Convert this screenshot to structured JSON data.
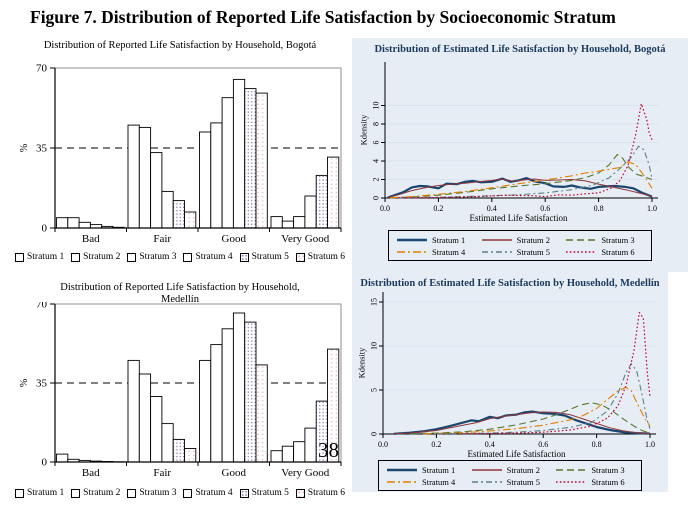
{
  "figure": {
    "title": "Figure 7. Distribution of Reported Life Satisfaction by Socioeconomic Stratum"
  },
  "page_number": "38",
  "colors": {
    "navy": "#1a476f",
    "maroon": "#90353b",
    "green": "#55752f",
    "orange": "#e37e00",
    "teal": "#5f8187",
    "red": "#c10534",
    "card_bg": "#e6edf4",
    "grid": "#d9e5ee",
    "pattern5_dot": "#8877b0",
    "pattern6_dot": "#e4a8b8"
  },
  "chart_data": [
    {
      "id": "bar_bogota",
      "type": "bar",
      "title": "Distribution of Reported Life Satisfaction by Household, Bogotá",
      "ylabel": "%",
      "yticks": [
        0,
        35,
        70
      ],
      "ylim": [
        0,
        70
      ],
      "ref_line": 35,
      "legend_position": "bottom",
      "categories": [
        "Bad",
        "Fair",
        "Good",
        "Very Good"
      ],
      "series": [
        {
          "name": "Stratum 1",
          "values": [
            4.5,
            45,
            42,
            5
          ]
        },
        {
          "name": "Stratum 2",
          "values": [
            4.5,
            44,
            46,
            3
          ]
        },
        {
          "name": "Stratum 3",
          "values": [
            2.5,
            33,
            57,
            5
          ]
        },
        {
          "name": "Stratum 4",
          "values": [
            1.5,
            16,
            65,
            14
          ]
        },
        {
          "name": "Stratum 5",
          "values": [
            0.7,
            12,
            61,
            23
          ]
        },
        {
          "name": "Stratum 6",
          "values": [
            0.3,
            7,
            59,
            31
          ]
        }
      ]
    },
    {
      "id": "density_bogota",
      "type": "line",
      "title": "Distribution of Estimated Life Satisfaction by Household, Bogotá",
      "xlabel": "Estimated Life Satisfaction",
      "ylabel": "Kdensity",
      "xlim": [
        0,
        1
      ],
      "ylim": [
        0,
        14.7
      ],
      "yticks": [
        0,
        2,
        4,
        6,
        8,
        10
      ],
      "xticks": [
        0,
        0.2,
        0.4,
        0.6,
        0.8,
        1.0
      ],
      "legend_position": "bottom-box",
      "series": [
        {
          "name": "Stratum 1",
          "points": [
            [
              0.01,
              0.05
            ],
            [
              0.04,
              0.35
            ],
            [
              0.07,
              0.65
            ],
            [
              0.1,
              1.15
            ],
            [
              0.13,
              1.3
            ],
            [
              0.16,
              1.25
            ],
            [
              0.2,
              1.05
            ],
            [
              0.23,
              1.55
            ],
            [
              0.27,
              1.5
            ],
            [
              0.3,
              1.75
            ],
            [
              0.33,
              1.85
            ],
            [
              0.36,
              1.7
            ],
            [
              0.4,
              1.75
            ],
            [
              0.44,
              2.1
            ],
            [
              0.47,
              1.75
            ],
            [
              0.5,
              1.9
            ],
            [
              0.53,
              2.15
            ],
            [
              0.56,
              1.8
            ],
            [
              0.6,
              1.6
            ],
            [
              0.63,
              1.25
            ],
            [
              0.67,
              1.2
            ],
            [
              0.7,
              1.35
            ],
            [
              0.73,
              1.15
            ],
            [
              0.77,
              1.0
            ],
            [
              0.8,
              1.2
            ],
            [
              0.83,
              1.25
            ],
            [
              0.86,
              1.3
            ],
            [
              0.9,
              1.2
            ],
            [
              0.93,
              1.05
            ],
            [
              0.96,
              0.6
            ],
            [
              1.0,
              0.15
            ]
          ]
        },
        {
          "name": "Stratum 2",
          "points": [
            [
              0.01,
              0.05
            ],
            [
              0.05,
              0.35
            ],
            [
              0.1,
              0.8
            ],
            [
              0.15,
              1.1
            ],
            [
              0.2,
              1.35
            ],
            [
              0.25,
              1.5
            ],
            [
              0.3,
              1.6
            ],
            [
              0.35,
              1.75
            ],
            [
              0.4,
              1.9
            ],
            [
              0.44,
              2.05
            ],
            [
              0.48,
              1.8
            ],
            [
              0.52,
              1.95
            ],
            [
              0.56,
              2.05
            ],
            [
              0.6,
              1.9
            ],
            [
              0.65,
              1.95
            ],
            [
              0.7,
              2.0
            ],
            [
              0.75,
              1.85
            ],
            [
              0.8,
              1.5
            ],
            [
              0.85,
              1.2
            ],
            [
              0.9,
              0.9
            ],
            [
              0.95,
              0.55
            ],
            [
              1.0,
              0.2
            ]
          ]
        },
        {
          "name": "Stratum 3",
          "points": [
            [
              0.02,
              0.02
            ],
            [
              0.1,
              0.1
            ],
            [
              0.2,
              0.3
            ],
            [
              0.3,
              0.6
            ],
            [
              0.4,
              1.0
            ],
            [
              0.5,
              1.3
            ],
            [
              0.6,
              1.55
            ],
            [
              0.7,
              1.9
            ],
            [
              0.75,
              2.2
            ],
            [
              0.8,
              2.7
            ],
            [
              0.84,
              3.6
            ],
            [
              0.87,
              4.7
            ],
            [
              0.89,
              4.3
            ],
            [
              0.91,
              3.4
            ],
            [
              0.94,
              2.6
            ],
            [
              0.97,
              2.3
            ],
            [
              1.0,
              2.0
            ]
          ]
        },
        {
          "name": "Stratum 4",
          "points": [
            [
              0.02,
              0.02
            ],
            [
              0.1,
              0.15
            ],
            [
              0.2,
              0.4
            ],
            [
              0.3,
              0.7
            ],
            [
              0.4,
              1.1
            ],
            [
              0.5,
              1.55
            ],
            [
              0.6,
              1.95
            ],
            [
              0.7,
              2.4
            ],
            [
              0.75,
              2.7
            ],
            [
              0.8,
              2.9
            ],
            [
              0.84,
              3.1
            ],
            [
              0.88,
              3.3
            ],
            [
              0.91,
              3.9
            ],
            [
              0.94,
              3.6
            ],
            [
              0.97,
              2.4
            ],
            [
              1.0,
              1.05
            ]
          ]
        },
        {
          "name": "Stratum 5",
          "points": [
            [
              0.05,
              0.02
            ],
            [
              0.2,
              0.08
            ],
            [
              0.35,
              0.2
            ],
            [
              0.5,
              0.35
            ],
            [
              0.6,
              0.55
            ],
            [
              0.7,
              0.9
            ],
            [
              0.78,
              1.4
            ],
            [
              0.84,
              2.2
            ],
            [
              0.88,
              3.2
            ],
            [
              0.92,
              4.3
            ],
            [
              0.95,
              5.6
            ],
            [
              0.97,
              5.2
            ],
            [
              0.99,
              3.5
            ],
            [
              1.0,
              2.1
            ]
          ]
        },
        {
          "name": "Stratum 6",
          "points": [
            [
              0.05,
              0.02
            ],
            [
              0.2,
              0.05
            ],
            [
              0.35,
              0.15
            ],
            [
              0.45,
              0.3
            ],
            [
              0.55,
              0.25
            ],
            [
              0.6,
              0.15
            ],
            [
              0.65,
              0.35
            ],
            [
              0.7,
              0.3
            ],
            [
              0.75,
              0.45
            ],
            [
              0.8,
              0.55
            ],
            [
              0.85,
              1.1
            ],
            [
              0.88,
              1.9
            ],
            [
              0.91,
              3.5
            ],
            [
              0.94,
              7.0
            ],
            [
              0.96,
              10.2
            ],
            [
              0.98,
              8.5
            ],
            [
              0.99,
              7.0
            ],
            [
              1.0,
              6.3
            ]
          ]
        }
      ]
    },
    {
      "id": "bar_medellin",
      "type": "bar",
      "title": "Distribution of Reported Life Satisfaction by Household, Medellín",
      "ylabel": "%",
      "yticks": [
        0,
        35,
        70
      ],
      "ylim": [
        0,
        70
      ],
      "ref_line": 35,
      "legend_position": "bottom",
      "categories": [
        "Bad",
        "Fair",
        "Good",
        "Very Good"
      ],
      "series": [
        {
          "name": "Stratum 1",
          "values": [
            3.5,
            45,
            45,
            5
          ]
        },
        {
          "name": "Stratum 2",
          "values": [
            1.2,
            39,
            52,
            7
          ]
        },
        {
          "name": "Stratum 3",
          "values": [
            0.7,
            29,
            59,
            9
          ]
        },
        {
          "name": "Stratum 4",
          "values": [
            0.4,
            17,
            66,
            15
          ]
        },
        {
          "name": "Stratum 5",
          "values": [
            0.2,
            10,
            62,
            27
          ]
        },
        {
          "name": "Stratum 6",
          "values": [
            0.1,
            6,
            43,
            50
          ]
        }
      ]
    },
    {
      "id": "density_medellin",
      "type": "line",
      "title": "Distribution of Estimated Life Satisfaction by Household, Medellín",
      "xlabel": "Estimated Life Satisfaction",
      "ylabel": "Kdensity",
      "xlim": [
        0,
        1
      ],
      "ylim": [
        0,
        16.3
      ],
      "yticks": [
        0,
        5,
        10,
        15
      ],
      "xticks": [
        0,
        0.2,
        0.4,
        0.6,
        0.8,
        1.0
      ],
      "legend_position": "bottom-box",
      "series": [
        {
          "name": "Stratum 1",
          "points": [
            [
              0.04,
              0.02
            ],
            [
              0.1,
              0.15
            ],
            [
              0.15,
              0.3
            ],
            [
              0.2,
              0.55
            ],
            [
              0.25,
              0.9
            ],
            [
              0.3,
              1.3
            ],
            [
              0.33,
              1.55
            ],
            [
              0.36,
              1.45
            ],
            [
              0.4,
              1.95
            ],
            [
              0.43,
              1.8
            ],
            [
              0.46,
              2.1
            ],
            [
              0.5,
              2.2
            ],
            [
              0.53,
              2.45
            ],
            [
              0.56,
              2.55
            ],
            [
              0.6,
              2.35
            ],
            [
              0.64,
              2.3
            ],
            [
              0.68,
              2.1
            ],
            [
              0.72,
              1.6
            ],
            [
              0.76,
              1.2
            ],
            [
              0.8,
              0.8
            ],
            [
              0.85,
              0.45
            ],
            [
              0.9,
              0.2
            ],
            [
              0.95,
              0.1
            ],
            [
              1.0,
              0.05
            ]
          ]
        },
        {
          "name": "Stratum 2",
          "points": [
            [
              0.04,
              0.02
            ],
            [
              0.1,
              0.1
            ],
            [
              0.2,
              0.4
            ],
            [
              0.3,
              1.0
            ],
            [
              0.35,
              1.3
            ],
            [
              0.4,
              1.75
            ],
            [
              0.45,
              2.0
            ],
            [
              0.5,
              2.2
            ],
            [
              0.55,
              2.4
            ],
            [
              0.6,
              2.5
            ],
            [
              0.65,
              2.45
            ],
            [
              0.7,
              2.2
            ],
            [
              0.75,
              1.7
            ],
            [
              0.8,
              1.2
            ],
            [
              0.85,
              0.7
            ],
            [
              0.9,
              0.35
            ],
            [
              0.95,
              0.15
            ],
            [
              1.0,
              0.05
            ]
          ]
        },
        {
          "name": "Stratum 3",
          "points": [
            [
              0.1,
              0.02
            ],
            [
              0.2,
              0.1
            ],
            [
              0.3,
              0.25
            ],
            [
              0.4,
              0.55
            ],
            [
              0.5,
              1.05
            ],
            [
              0.6,
              1.7
            ],
            [
              0.65,
              2.2
            ],
            [
              0.7,
              2.8
            ],
            [
              0.74,
              3.3
            ],
            [
              0.78,
              3.55
            ],
            [
              0.82,
              3.3
            ],
            [
              0.86,
              2.6
            ],
            [
              0.9,
              1.7
            ],
            [
              0.94,
              0.9
            ],
            [
              0.97,
              0.4
            ],
            [
              1.0,
              0.1
            ]
          ]
        },
        {
          "name": "Stratum 4",
          "points": [
            [
              0.15,
              0.02
            ],
            [
              0.3,
              0.15
            ],
            [
              0.4,
              0.35
            ],
            [
              0.5,
              0.6
            ],
            [
              0.6,
              1.0
            ],
            [
              0.7,
              1.6
            ],
            [
              0.75,
              2.1
            ],
            [
              0.8,
              2.9
            ],
            [
              0.84,
              3.9
            ],
            [
              0.88,
              4.9
            ],
            [
              0.91,
              5.3
            ],
            [
              0.93,
              4.9
            ],
            [
              0.96,
              3.0
            ],
            [
              0.98,
              1.8
            ],
            [
              1.0,
              0.9
            ]
          ]
        },
        {
          "name": "Stratum 5",
          "points": [
            [
              0.2,
              0.02
            ],
            [
              0.4,
              0.1
            ],
            [
              0.5,
              0.2
            ],
            [
              0.6,
              0.4
            ],
            [
              0.7,
              0.75
            ],
            [
              0.78,
              1.3
            ],
            [
              0.84,
              2.6
            ],
            [
              0.88,
              4.6
            ],
            [
              0.91,
              7.0
            ],
            [
              0.93,
              8.0
            ],
            [
              0.95,
              7.2
            ],
            [
              0.97,
              4.5
            ],
            [
              0.99,
              1.5
            ],
            [
              1.0,
              0.6
            ]
          ]
        },
        {
          "name": "Stratum 6",
          "points": [
            [
              0.3,
              0.02
            ],
            [
              0.5,
              0.1
            ],
            [
              0.6,
              0.2
            ],
            [
              0.7,
              0.45
            ],
            [
              0.78,
              0.9
            ],
            [
              0.84,
              1.8
            ],
            [
              0.88,
              3.2
            ],
            [
              0.91,
              5.5
            ],
            [
              0.94,
              9.5
            ],
            [
              0.96,
              13.8
            ],
            [
              0.975,
              13.2
            ],
            [
              0.99,
              7.0
            ],
            [
              1.0,
              4.2
            ]
          ]
        }
      ]
    }
  ]
}
